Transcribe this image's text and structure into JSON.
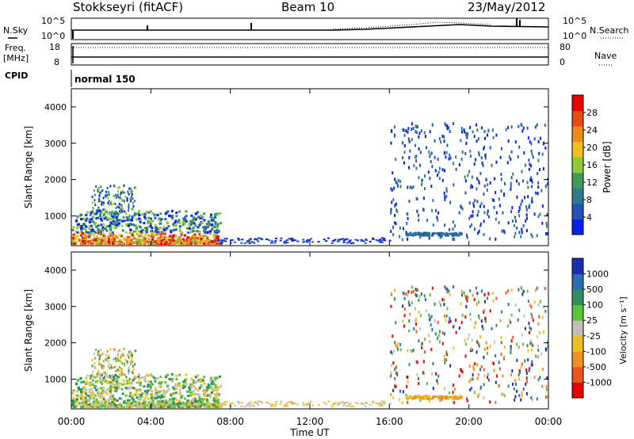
{
  "header": {
    "title": "Stokkseyri (fitACF)",
    "beam": "Beam 10",
    "date": "23/May/2012"
  },
  "top_panels": {
    "nsky_label": "N.Sky",
    "nsearch_label": "N.Search",
    "nsky_ticks": [
      "10^5",
      "10^0"
    ],
    "nsearch_ticks": [
      "10^5",
      "10^0"
    ],
    "freq_label": "Freq.",
    "freq_unit": "[MHz]",
    "freq_ticks": [
      "18",
      "8"
    ],
    "nave_label": "Nave",
    "nave_ticks": [
      "80",
      "0"
    ],
    "cpid_label": "CPID",
    "cpid_value": "normal 150"
  },
  "chart_data": [
    {
      "type": "heatmap",
      "quantity": "Power",
      "ylabel": "Slant Range [km]",
      "ylim": [
        180,
        4500
      ],
      "yticks": [
        1000,
        2000,
        3000,
        4000
      ],
      "xlim": [
        0,
        24
      ],
      "colorbar": {
        "label": "Power [dB]",
        "range": [
          0,
          32
        ],
        "ticks": [
          "4",
          "8",
          "12",
          "16",
          "20",
          "24",
          "28"
        ],
        "colors": [
          "#0a1fe8",
          "#2255b8",
          "#2f7a8a",
          "#3d9a5a",
          "#8fc93a",
          "#f0c020",
          "#f08a20",
          "#e84a18",
          "#e80000"
        ]
      }
    },
    {
      "type": "heatmap",
      "quantity": "Velocity",
      "ylabel": "Slant Range [km]",
      "ylim": [
        180,
        4500
      ],
      "yticks": [
        1000,
        2000,
        3000,
        4000
      ],
      "xlim": [
        0,
        24
      ],
      "colorbar": {
        "label": "Velocity [m s⁻¹]",
        "ticks": [
          "1000",
          "500",
          "100",
          "25",
          "-25",
          "-100",
          "-500",
          "-1000"
        ],
        "colors": [
          "#1a2fb0",
          "#2a6db0",
          "#2f8f60",
          "#5cc33a",
          "#c0c0b8",
          "#f0c020",
          "#f09020",
          "#e85818",
          "#e80000"
        ]
      }
    }
  ],
  "x_axis": {
    "ticks": [
      "00:00",
      "04:00",
      "08:00",
      "12:00",
      "16:00",
      "20:00",
      "00:00"
    ],
    "label": "Time UT"
  }
}
